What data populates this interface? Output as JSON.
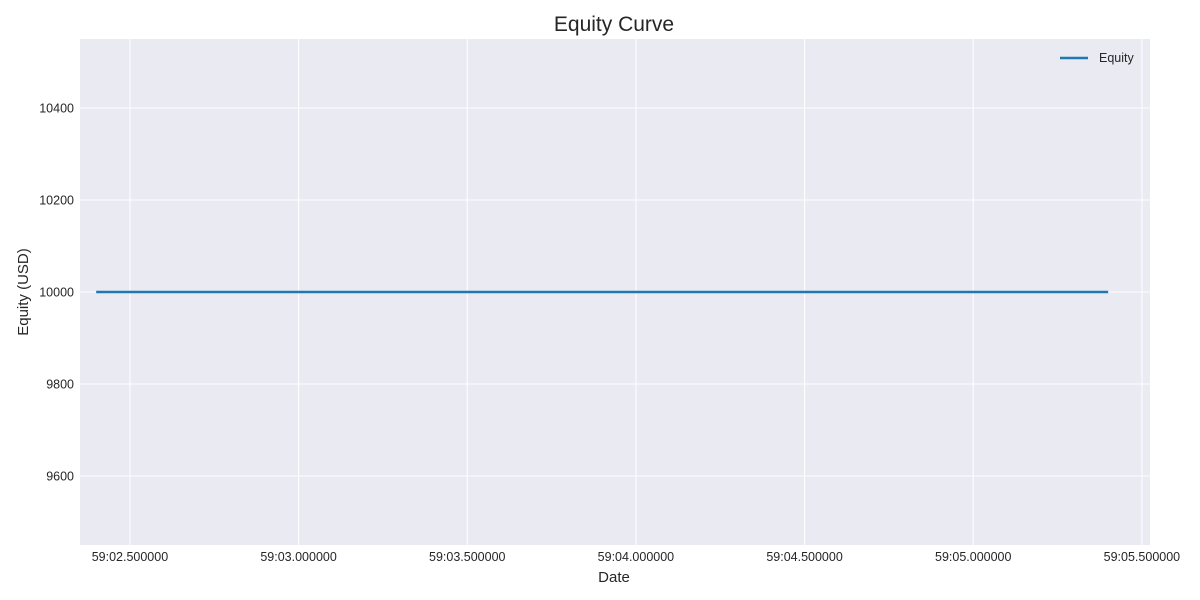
{
  "chart_data": {
    "type": "line",
    "title": "Equity Curve",
    "xlabel": "Date",
    "ylabel": "Equity (USD)",
    "x_ticks": [
      "59:02.500000",
      "59:03.000000",
      "59:03.500000",
      "59:04.000000",
      "59:04.500000",
      "59:05.000000",
      "59:05.500000"
    ],
    "y_ticks": [
      "9600",
      "9800",
      "10000",
      "10200",
      "10400"
    ],
    "xlim": [
      "59:02.352000",
      "59:05.524000"
    ],
    "ylim": [
      9450,
      10550
    ],
    "grid": true,
    "legend_position": "top-right",
    "series": [
      {
        "name": "Equity",
        "color": "#1f77b4",
        "x": [
          "59:02.400000",
          "59:05.400000"
        ],
        "y": [
          10000,
          10000
        ]
      }
    ],
    "colors": {
      "plot_background": "#eaeaf2",
      "grid": "#ffffff",
      "text": "#262626"
    }
  }
}
